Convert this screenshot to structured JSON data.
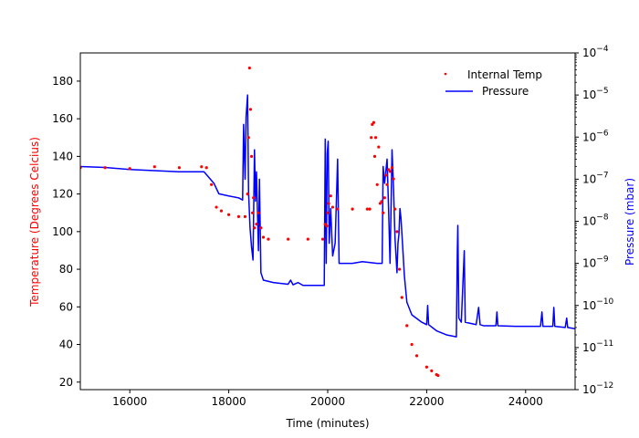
{
  "chart_data": {
    "type": "line",
    "title": "",
    "xlabel": "Time (minutes)",
    "ylabel_left": "Temperature (Degrees Celcius)",
    "ylabel_right": "Pressure (mbar)",
    "xlim": [
      15000,
      25000
    ],
    "ylim_left": [
      16,
      195
    ],
    "ylim_right": [
      1e-12,
      0.0001
    ],
    "right_scale": "log",
    "grid": false,
    "legend_position": "top-right",
    "colors": {
      "temp": "#ff0000",
      "pressure": "#0000ff",
      "ylabel_left": "#ff0000",
      "ylabel_right": "#0000ff"
    },
    "x_ticks": [
      {
        "value": 16000,
        "label": "16000"
      },
      {
        "value": 18000,
        "label": "18000"
      },
      {
        "value": 20000,
        "label": "20000"
      },
      {
        "value": 22000,
        "label": "22000"
      },
      {
        "value": 24000,
        "label": "24000"
      }
    ],
    "y_left_ticks": [
      {
        "value": 20,
        "label": "20"
      },
      {
        "value": 40,
        "label": "40"
      },
      {
        "value": 60,
        "label": "60"
      },
      {
        "value": 80,
        "label": "80"
      },
      {
        "value": 100,
        "label": "100"
      },
      {
        "value": 120,
        "label": "120"
      },
      {
        "value": 140,
        "label": "140"
      },
      {
        "value": 160,
        "label": "160"
      },
      {
        "value": 180,
        "label": "180"
      }
    ],
    "y_right_ticks": [
      {
        "value": 1e-12,
        "base": "10",
        "exp": "−12"
      },
      {
        "value": 1e-11,
        "base": "10",
        "exp": "−11"
      },
      {
        "value": 1e-10,
        "base": "10",
        "exp": "−10"
      },
      {
        "value": 1e-09,
        "base": "10",
        "exp": "−9"
      },
      {
        "value": 1e-08,
        "base": "10",
        "exp": "−8"
      },
      {
        "value": 1e-07,
        "base": "10",
        "exp": "−7"
      },
      {
        "value": 1e-06,
        "base": "10",
        "exp": "−6"
      },
      {
        "value": 1e-05,
        "base": "10",
        "exp": "−5"
      },
      {
        "value": 0.0001,
        "base": "10",
        "exp": "−4"
      }
    ],
    "series": [
      {
        "name": "Internal Temp",
        "axis": "left",
        "style": "dots",
        "points": [
          [
            15000,
            134
          ],
          [
            15500,
            134
          ],
          [
            16000,
            133.5
          ],
          [
            16500,
            134.5
          ],
          [
            17000,
            134
          ],
          [
            17450,
            134.5
          ],
          [
            17550,
            134
          ],
          [
            17650,
            125
          ],
          [
            17750,
            113
          ],
          [
            17850,
            111
          ],
          [
            18000,
            109
          ],
          [
            18200,
            108
          ],
          [
            18330,
            108
          ],
          [
            18380,
            120
          ],
          [
            18400,
            150
          ],
          [
            18420,
            187
          ],
          [
            18440,
            165
          ],
          [
            18460,
            140
          ],
          [
            18480,
            110
          ],
          [
            18500,
            118
          ],
          [
            18520,
            102
          ],
          [
            18560,
            104
          ],
          [
            18600,
            110
          ],
          [
            18650,
            102
          ],
          [
            18700,
            97
          ],
          [
            18800,
            96
          ],
          [
            19200,
            96
          ],
          [
            19600,
            96
          ],
          [
            19900,
            96
          ],
          [
            19950,
            104
          ],
          [
            19980,
            103
          ],
          [
            20000,
            110
          ],
          [
            20020,
            115
          ],
          [
            20060,
            119
          ],
          [
            20100,
            113
          ],
          [
            20200,
            112
          ],
          [
            20500,
            112
          ],
          [
            20800,
            112
          ],
          [
            20850,
            112
          ],
          [
            20880,
            150
          ],
          [
            20900,
            157
          ],
          [
            20930,
            158
          ],
          [
            20950,
            140
          ],
          [
            20970,
            150
          ],
          [
            21000,
            125
          ],
          [
            21030,
            145
          ],
          [
            21060,
            115
          ],
          [
            21090,
            116
          ],
          [
            21120,
            110
          ],
          [
            21150,
            118
          ],
          [
            21180,
            130
          ],
          [
            21200,
            125
          ],
          [
            21230,
            133
          ],
          [
            21260,
            132
          ],
          [
            21300,
            134
          ],
          [
            21330,
            128
          ],
          [
            21360,
            112
          ],
          [
            21400,
            100
          ],
          [
            21450,
            80
          ],
          [
            21500,
            65
          ],
          [
            21600,
            50
          ],
          [
            21700,
            40
          ],
          [
            21800,
            34
          ],
          [
            22000,
            28
          ],
          [
            22100,
            26
          ],
          [
            22200,
            24
          ],
          [
            22230,
            23.5
          ]
        ]
      },
      {
        "name": "Pressure",
        "axis": "right",
        "style": "line",
        "points": [
          [
            15000,
            2e-07
          ],
          [
            15500,
            1.9e-07
          ],
          [
            16000,
            1.7e-07
          ],
          [
            16500,
            1.6e-07
          ],
          [
            17000,
            1.5e-07
          ],
          [
            17500,
            1.5e-07
          ],
          [
            17700,
            8e-08
          ],
          [
            17800,
            4.5e-08
          ],
          [
            18000,
            4e-08
          ],
          [
            18200,
            3.6e-08
          ],
          [
            18280,
            3.2e-08
          ],
          [
            18300,
            2e-06
          ],
          [
            18330,
            1e-07
          ],
          [
            18350,
            3e-06
          ],
          [
            18380,
            1e-05
          ],
          [
            18400,
            5e-08
          ],
          [
            18430,
            7e-09
          ],
          [
            18460,
            2.5e-09
          ],
          [
            18490,
            1.2e-09
          ],
          [
            18520,
            5e-07
          ],
          [
            18540,
            3e-08
          ],
          [
            18560,
            1.5e-07
          ],
          [
            18600,
            2e-09
          ],
          [
            18620,
            1e-07
          ],
          [
            18650,
            6e-10
          ],
          [
            18700,
            4e-10
          ],
          [
            18900,
            3.5e-10
          ],
          [
            19200,
            3.2e-10
          ],
          [
            19250,
            4e-10
          ],
          [
            19300,
            3.1e-10
          ],
          [
            19400,
            3.5e-10
          ],
          [
            19500,
            3e-10
          ],
          [
            19800,
            3e-10
          ],
          [
            19930,
            3e-10
          ],
          [
            19950,
            9e-07
          ],
          [
            19970,
            1e-09
          ],
          [
            19990,
            4e-07
          ],
          [
            20010,
            8e-07
          ],
          [
            20030,
            3e-09
          ],
          [
            20060,
            2e-08
          ],
          [
            20100,
            1.5e-09
          ],
          [
            20150,
            3e-09
          ],
          [
            20200,
            3e-07
          ],
          [
            20230,
            1e-09
          ],
          [
            20300,
            1e-09
          ],
          [
            20500,
            1e-09
          ],
          [
            20700,
            1.1e-09
          ],
          [
            21000,
            1e-09
          ],
          [
            21100,
            1e-09
          ],
          [
            21120,
            2e-07
          ],
          [
            21150,
            8e-08
          ],
          [
            21200,
            3e-07
          ],
          [
            21230,
            2e-08
          ],
          [
            21260,
            1e-09
          ],
          [
            21300,
            5e-07
          ],
          [
            21330,
            6e-08
          ],
          [
            21360,
            4e-09
          ],
          [
            21400,
            6e-10
          ],
          [
            21420,
            3e-09
          ],
          [
            21440,
            5e-09
          ],
          [
            21460,
            2e-08
          ],
          [
            21480,
            1.2e-08
          ],
          [
            21500,
            5e-09
          ],
          [
            21550,
            5e-10
          ],
          [
            21600,
            1.2e-10
          ],
          [
            21700,
            6e-11
          ],
          [
            21900,
            4e-11
          ],
          [
            22000,
            3.5e-11
          ],
          [
            22020,
            1e-10
          ],
          [
            22040,
            3.5e-11
          ],
          [
            22200,
            2.5e-11
          ],
          [
            22400,
            2e-11
          ],
          [
            22600,
            1.8e-11
          ],
          [
            22620,
            2e-09
          ],
          [
            22630,
            8e-09
          ],
          [
            22650,
            5e-11
          ],
          [
            22700,
            4e-11
          ],
          [
            22760,
            2e-09
          ],
          [
            22780,
            4e-11
          ],
          [
            23000,
            3.5e-11
          ],
          [
            23050,
            9e-11
          ],
          [
            23080,
            3.5e-11
          ],
          [
            23150,
            3.3e-11
          ],
          [
            23400,
            3.3e-11
          ],
          [
            23420,
            7e-11
          ],
          [
            23440,
            3.3e-11
          ],
          [
            23800,
            3.2e-11
          ],
          [
            24300,
            3.2e-11
          ],
          [
            24330,
            7e-11
          ],
          [
            24350,
            3.2e-11
          ],
          [
            24550,
            3.2e-11
          ],
          [
            24570,
            9e-11
          ],
          [
            24590,
            3.2e-11
          ],
          [
            24800,
            3e-11
          ],
          [
            24830,
            5e-11
          ],
          [
            24850,
            3e-11
          ],
          [
            25000,
            2.8e-11
          ]
        ]
      }
    ]
  }
}
